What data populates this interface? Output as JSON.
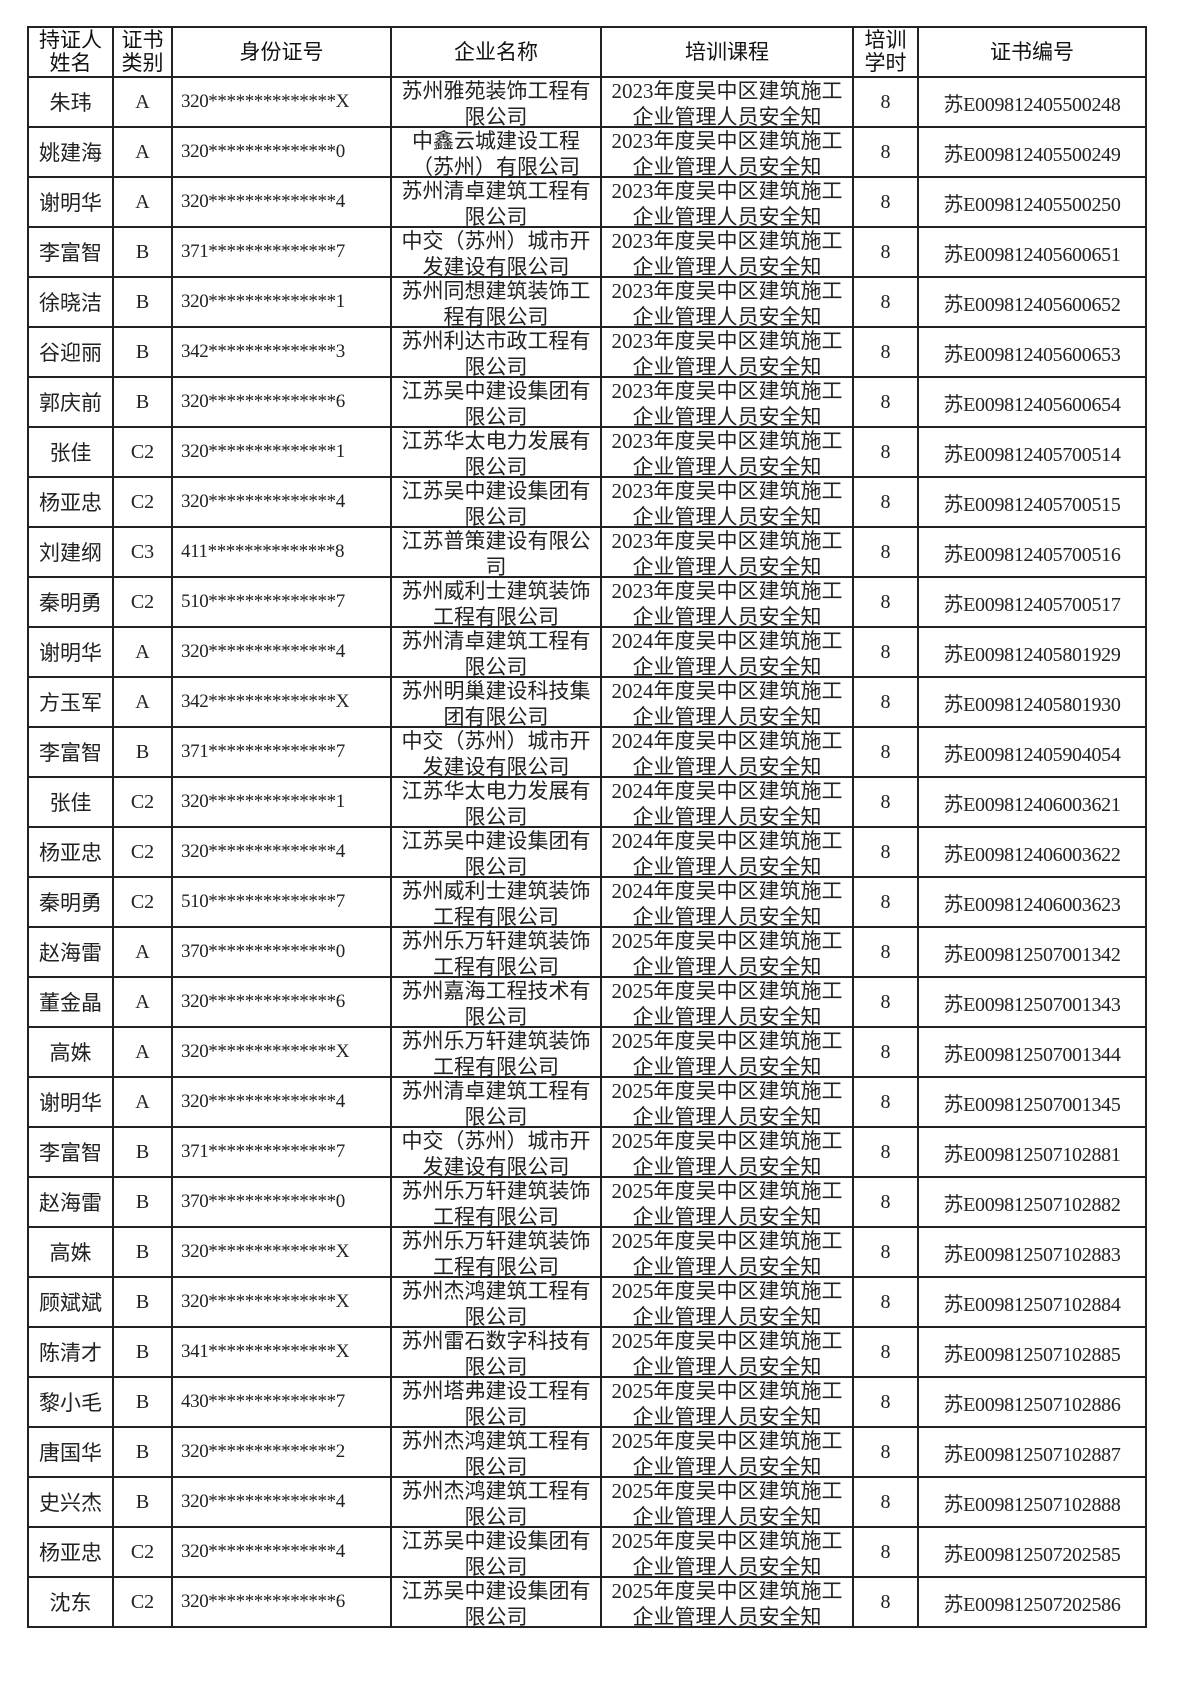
{
  "headers": [
    "持证人姓名",
    "证书类别",
    "身份证号",
    "企业名称",
    "培训课程",
    "培训学时",
    "证书编号"
  ],
  "rows": [
    [
      "朱玮",
      "A",
      "320**************X",
      "苏州雅苑装饰工程有限公司",
      "2023年度吴中区建筑施工企业管理人员安全知",
      "8",
      "苏E009812405500248"
    ],
    [
      "姚建海",
      "A",
      "320**************0",
      "中鑫云城建设工程（苏州）有限公司",
      "2023年度吴中区建筑施工企业管理人员安全知",
      "8",
      "苏E009812405500249"
    ],
    [
      "谢明华",
      "A",
      "320**************4",
      "苏州清卓建筑工程有限公司",
      "2023年度吴中区建筑施工企业管理人员安全知",
      "8",
      "苏E009812405500250"
    ],
    [
      "李富智",
      "B",
      "371**************7",
      "中交（苏州）城市开发建设有限公司",
      "2023年度吴中区建筑施工企业管理人员安全知",
      "8",
      "苏E009812405600651"
    ],
    [
      "徐晓洁",
      "B",
      "320**************1",
      "苏州同想建筑装饰工程有限公司",
      "2023年度吴中区建筑施工企业管理人员安全知",
      "8",
      "苏E009812405600652"
    ],
    [
      "谷迎丽",
      "B",
      "342**************3",
      "苏州利达市政工程有限公司",
      "2023年度吴中区建筑施工企业管理人员安全知",
      "8",
      "苏E009812405600653"
    ],
    [
      "郭庆前",
      "B",
      "320**************6",
      "江苏吴中建设集团有限公司",
      "2023年度吴中区建筑施工企业管理人员安全知",
      "8",
      "苏E009812405600654"
    ],
    [
      "张佳",
      "C2",
      "320**************1",
      "江苏华太电力发展有限公司",
      "2023年度吴中区建筑施工企业管理人员安全知",
      "8",
      "苏E009812405700514"
    ],
    [
      "杨亚忠",
      "C2",
      "320**************4",
      "江苏吴中建设集团有限公司",
      "2023年度吴中区建筑施工企业管理人员安全知",
      "8",
      "苏E009812405700515"
    ],
    [
      "刘建纲",
      "C3",
      "411**************8",
      "江苏普策建设有限公司",
      "2023年度吴中区建筑施工企业管理人员安全知",
      "8",
      "苏E009812405700516"
    ],
    [
      "秦明勇",
      "C2",
      "510**************7",
      "苏州威利士建筑装饰工程有限公司",
      "2023年度吴中区建筑施工企业管理人员安全知",
      "8",
      "苏E009812405700517"
    ],
    [
      "谢明华",
      "A",
      "320**************4",
      "苏州清卓建筑工程有限公司",
      "2024年度吴中区建筑施工企业管理人员安全知",
      "8",
      "苏E009812405801929"
    ],
    [
      "方玉军",
      "A",
      "342**************X",
      "苏州明巢建设科技集团有限公司",
      "2024年度吴中区建筑施工企业管理人员安全知",
      "8",
      "苏E009812405801930"
    ],
    [
      "李富智",
      "B",
      "371**************7",
      "中交（苏州）城市开发建设有限公司",
      "2024年度吴中区建筑施工企业管理人员安全知",
      "8",
      "苏E009812405904054"
    ],
    [
      "张佳",
      "C2",
      "320**************1",
      "江苏华太电力发展有限公司",
      "2024年度吴中区建筑施工企业管理人员安全知",
      "8",
      "苏E009812406003621"
    ],
    [
      "杨亚忠",
      "C2",
      "320**************4",
      "江苏吴中建设集团有限公司",
      "2024年度吴中区建筑施工企业管理人员安全知",
      "8",
      "苏E009812406003622"
    ],
    [
      "秦明勇",
      "C2",
      "510**************7",
      "苏州威利士建筑装饰工程有限公司",
      "2024年度吴中区建筑施工企业管理人员安全知",
      "8",
      "苏E009812406003623"
    ],
    [
      "赵海雷",
      "A",
      "370**************0",
      "苏州乐万轩建筑装饰工程有限公司",
      "2025年度吴中区建筑施工企业管理人员安全知",
      "8",
      "苏E009812507001342"
    ],
    [
      "董金晶",
      "A",
      "320**************6",
      "苏州嘉海工程技术有限公司",
      "2025年度吴中区建筑施工企业管理人员安全知",
      "8",
      "苏E009812507001343"
    ],
    [
      "高姝",
      "A",
      "320**************X",
      "苏州乐万轩建筑装饰工程有限公司",
      "2025年度吴中区建筑施工企业管理人员安全知",
      "8",
      "苏E009812507001344"
    ],
    [
      "谢明华",
      "A",
      "320**************4",
      "苏州清卓建筑工程有限公司",
      "2025年度吴中区建筑施工企业管理人员安全知",
      "8",
      "苏E009812507001345"
    ],
    [
      "李富智",
      "B",
      "371**************7",
      "中交（苏州）城市开发建设有限公司",
      "2025年度吴中区建筑施工企业管理人员安全知",
      "8",
      "苏E009812507102881"
    ],
    [
      "赵海雷",
      "B",
      "370**************0",
      "苏州乐万轩建筑装饰工程有限公司",
      "2025年度吴中区建筑施工企业管理人员安全知",
      "8",
      "苏E009812507102882"
    ],
    [
      "高姝",
      "B",
      "320**************X",
      "苏州乐万轩建筑装饰工程有限公司",
      "2025年度吴中区建筑施工企业管理人员安全知",
      "8",
      "苏E009812507102883"
    ],
    [
      "顾斌斌",
      "B",
      "320**************X",
      "苏州杰鸿建筑工程有限公司",
      "2025年度吴中区建筑施工企业管理人员安全知",
      "8",
      "苏E009812507102884"
    ],
    [
      "陈清才",
      "B",
      "341**************X",
      "苏州雷石数字科技有限公司",
      "2025年度吴中区建筑施工企业管理人员安全知",
      "8",
      "苏E009812507102885"
    ],
    [
      "黎小毛",
      "B",
      "430**************7",
      "苏州塔弗建设工程有限公司",
      "2025年度吴中区建筑施工企业管理人员安全知",
      "8",
      "苏E009812507102886"
    ],
    [
      "唐国华",
      "B",
      "320**************2",
      "苏州杰鸿建筑工程有限公司",
      "2025年度吴中区建筑施工企业管理人员安全知",
      "8",
      "苏E009812507102887"
    ],
    [
      "史兴杰",
      "B",
      "320**************4",
      "苏州杰鸿建筑工程有限公司",
      "2025年度吴中区建筑施工企业管理人员安全知",
      "8",
      "苏E009812507102888"
    ],
    [
      "杨亚忠",
      "C2",
      "320**************4",
      "江苏吴中建设集团有限公司",
      "2025年度吴中区建筑施工企业管理人员安全知",
      "8",
      "苏E009812507202585"
    ],
    [
      "沈东",
      "C2",
      "320**************6",
      "江苏吴中建设集团有限公司",
      "2025年度吴中区建筑施工企业管理人员安全知",
      "8",
      "苏E009812507202586"
    ]
  ]
}
